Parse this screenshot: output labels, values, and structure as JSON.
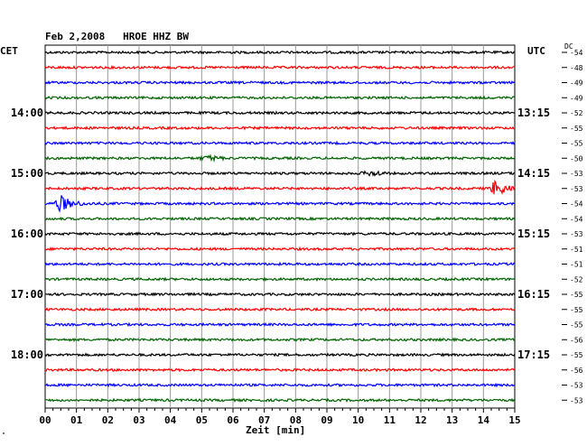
{
  "header": {
    "date": "Feb 2,2008",
    "station": "HROE HHZ BW"
  },
  "left_axis_label": "CET",
  "right_axis_label": "UTC",
  "dc_label": "DC",
  "corner_mark": "\"",
  "chart_data": {
    "type": "line",
    "title": "Feb 2,2008   HROE HHZ BW",
    "xlabel": "Zeit [min]",
    "x_ticks": [
      "00",
      "01",
      "02",
      "03",
      "04",
      "05",
      "06",
      "07",
      "08",
      "09",
      "10",
      "11",
      "12",
      "13",
      "14",
      "15"
    ],
    "xlim": [
      0,
      15
    ],
    "grid": true,
    "trace_colors": [
      "#000000",
      "#ff0000",
      "#0000ff",
      "#006400"
    ],
    "left_hour_labels": [
      {
        "trace": 4,
        "label": "14:00"
      },
      {
        "trace": 8,
        "label": "15:00"
      },
      {
        "trace": 12,
        "label": "16:00"
      },
      {
        "trace": 16,
        "label": "17:00"
      },
      {
        "trace": 20,
        "label": "18:00"
      }
    ],
    "right_hour_labels": [
      {
        "trace": 4,
        "label": "13:15"
      },
      {
        "trace": 8,
        "label": "14:15"
      },
      {
        "trace": 12,
        "label": "15:15"
      },
      {
        "trace": 16,
        "label": "16:15"
      },
      {
        "trace": 20,
        "label": "17:15"
      }
    ],
    "dc_offsets": [
      "-54",
      "-48",
      "-49",
      "-49",
      "-52",
      "-55",
      "-55",
      "-50",
      "-53",
      "-53",
      "-54",
      "-54",
      "-53",
      "-51",
      "-51",
      "-52",
      "-55",
      "-55",
      "-55",
      "-56",
      "-55",
      "-56",
      "-53",
      "-53"
    ],
    "events": [
      {
        "trace": 10,
        "minute": 0.5,
        "amplitude": "large"
      },
      {
        "trace": 9,
        "minute": 14.4,
        "amplitude": "large"
      },
      {
        "trace": 7,
        "minute": 5.3,
        "amplitude": "small"
      },
      {
        "trace": 8,
        "minute": 10.5,
        "amplitude": "small"
      }
    ]
  }
}
